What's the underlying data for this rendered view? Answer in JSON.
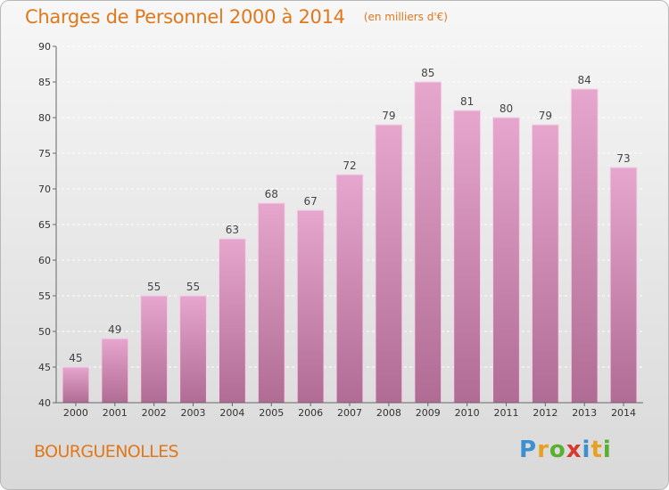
{
  "chart_data": {
    "type": "bar",
    "title": "Charges de Personnel 2000 à 2014",
    "subtitle": "(en milliers d'€)",
    "categories": [
      "2000",
      "2001",
      "2002",
      "2003",
      "2004",
      "2005",
      "2006",
      "2007",
      "2008",
      "2009",
      "2010",
      "2011",
      "2012",
      "2013",
      "2014"
    ],
    "values": [
      45,
      49,
      55,
      55,
      63,
      68,
      67,
      72,
      79,
      85,
      81,
      80,
      79,
      84,
      73
    ],
    "ylim": [
      40,
      90
    ],
    "yticks": [
      40,
      45,
      50,
      55,
      60,
      65,
      70,
      75,
      80,
      85,
      90
    ],
    "grid": true,
    "bar_color": "#d98fba"
  },
  "place_name": "BOURGUENOLLES",
  "logo": {
    "text": "Proxiti",
    "chars": [
      "P",
      "r",
      "o",
      "x",
      "i",
      "t",
      "i"
    ]
  }
}
